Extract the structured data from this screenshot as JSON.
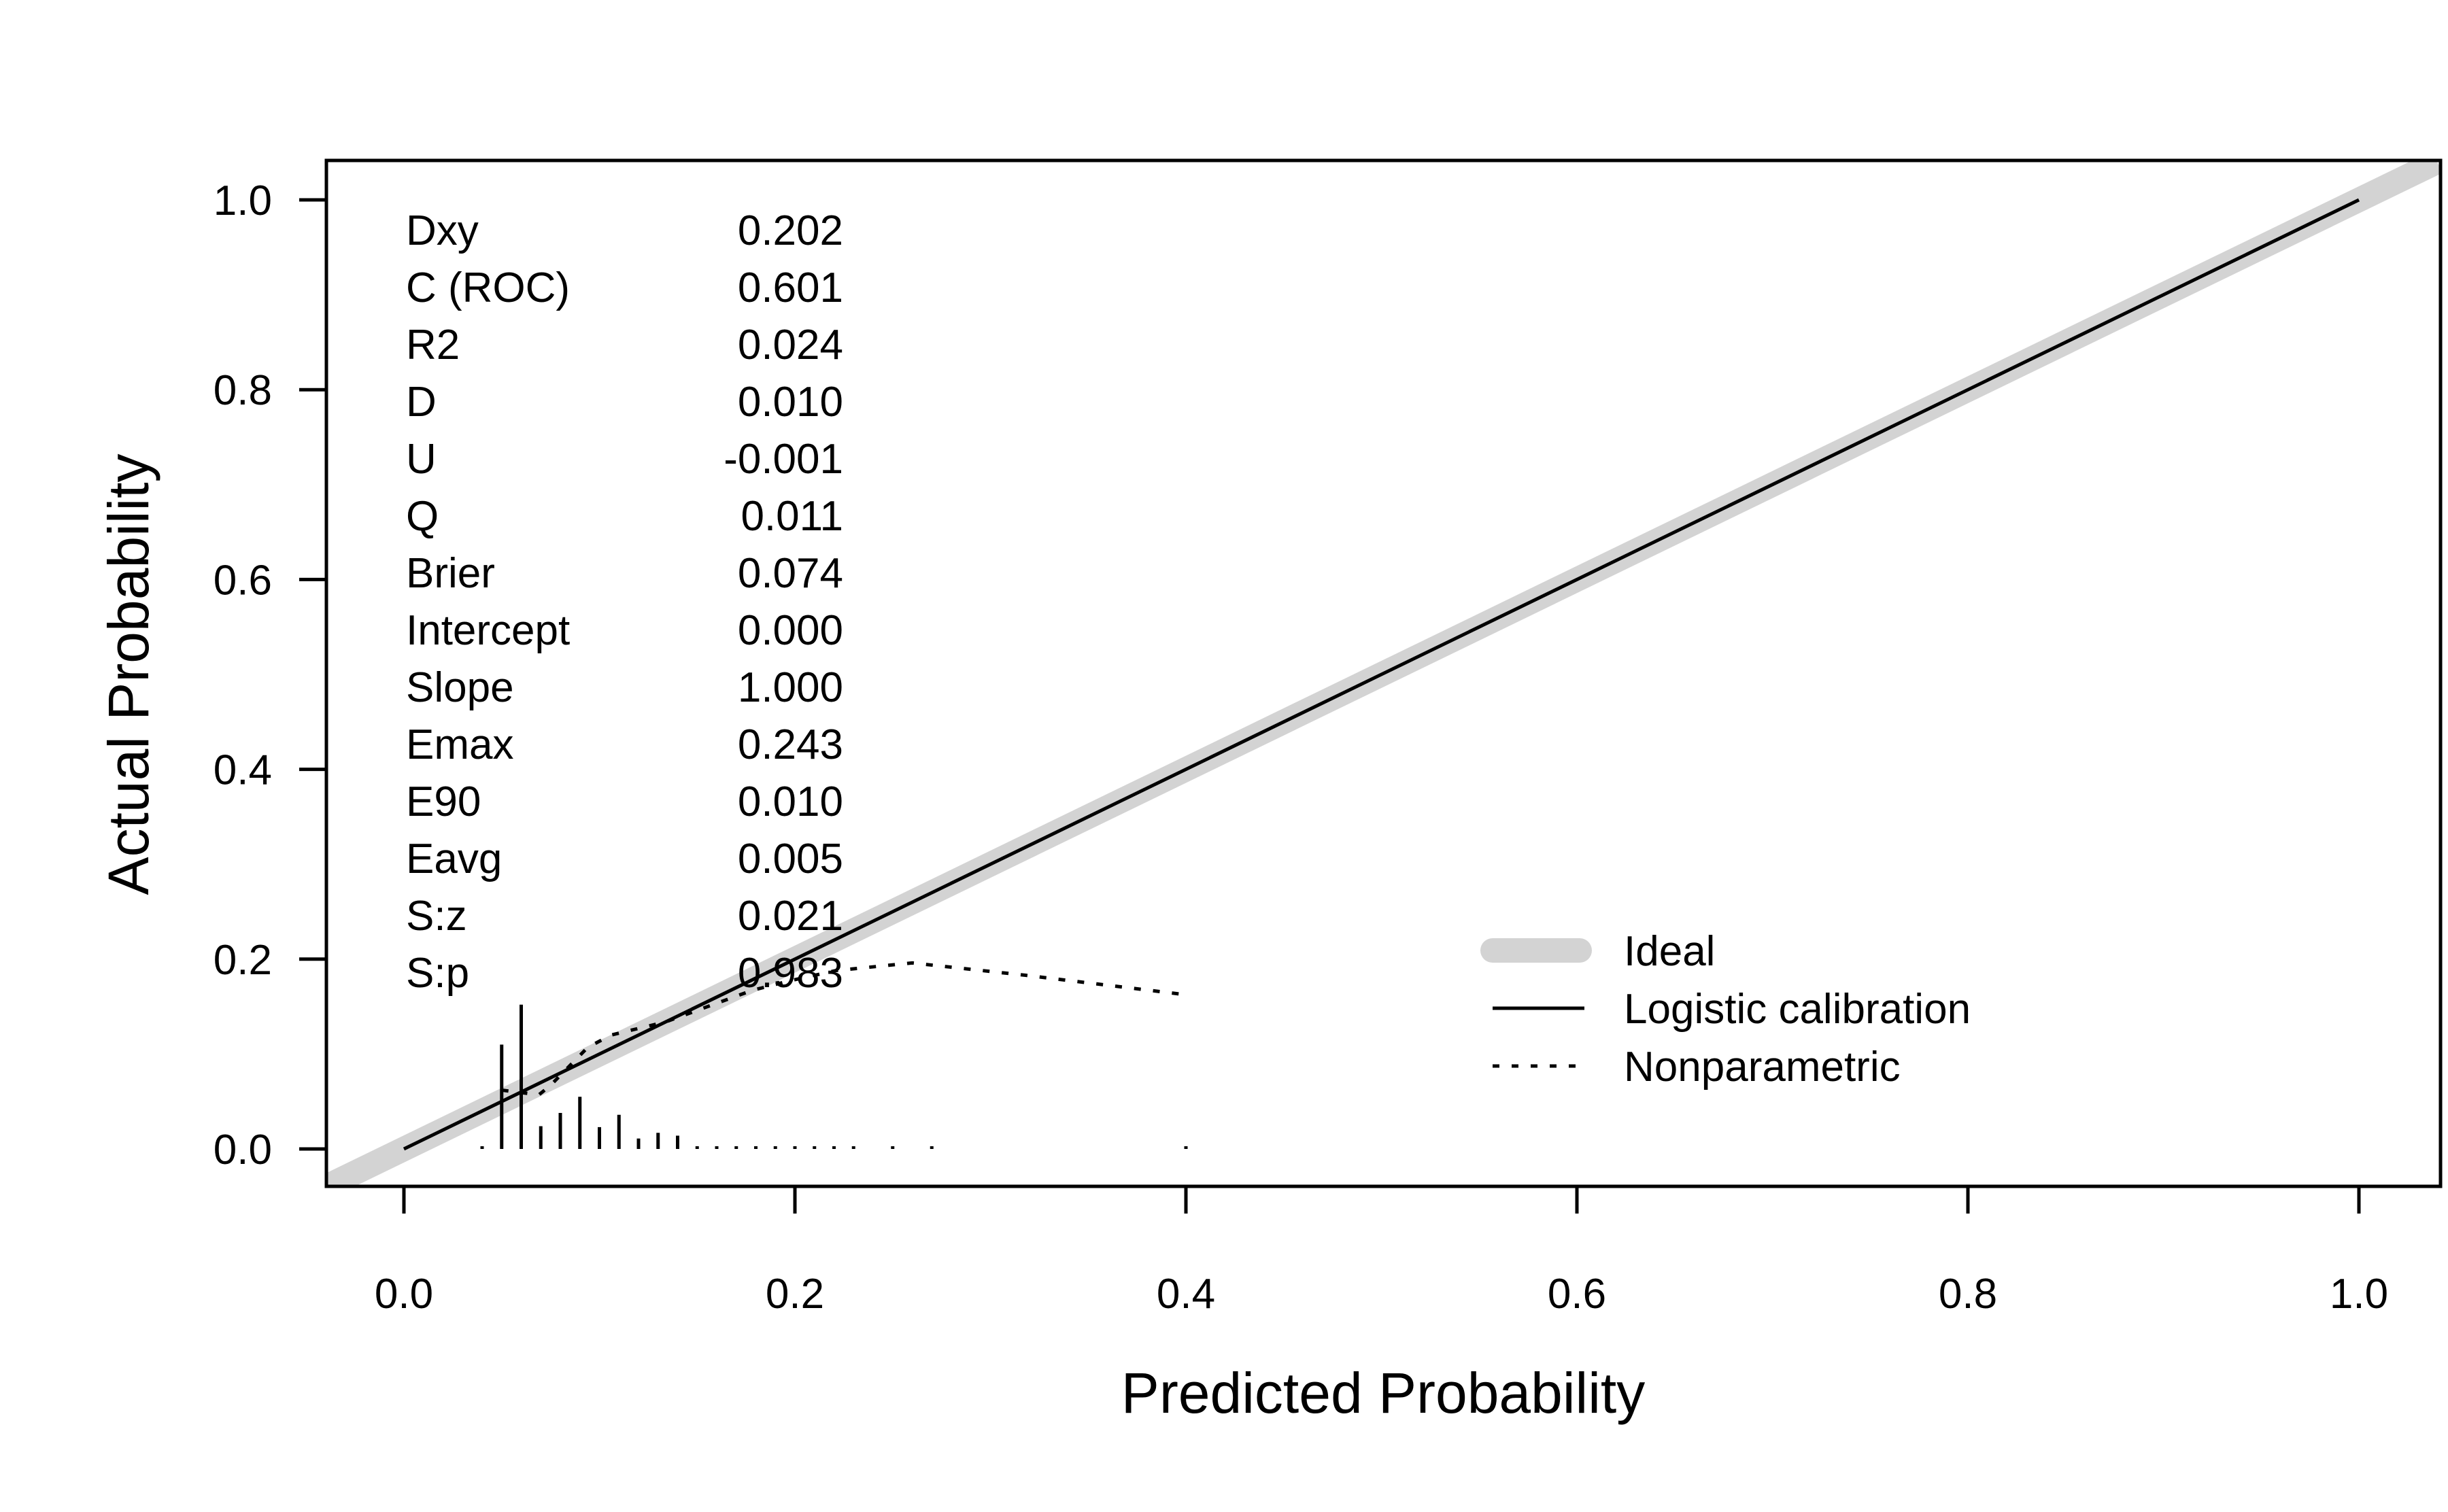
{
  "chart_data": {
    "type": "line",
    "title": "",
    "xlabel": "Predicted Probability",
    "ylabel": "Actual Probability",
    "xlim": [
      -0.04,
      1.04
    ],
    "ylim": [
      -0.04,
      1.04
    ],
    "xticks": [
      "0.0",
      "0.2",
      "0.4",
      "0.6",
      "0.8",
      "1.0"
    ],
    "yticks": [
      "0.0",
      "0.2",
      "0.4",
      "0.6",
      "0.8",
      "1.0"
    ],
    "grid": false,
    "stats": [
      {
        "label": "Dxy",
        "value": "0.202"
      },
      {
        "label": "C (ROC)",
        "value": "0.601"
      },
      {
        "label": "R2",
        "value": "0.024"
      },
      {
        "label": "D",
        "value": "0.010"
      },
      {
        "label": "U",
        "value": "-0.001"
      },
      {
        "label": "Q",
        "value": "0.011"
      },
      {
        "label": "Brier",
        "value": "0.074"
      },
      {
        "label": "Intercept",
        "value": "0.000"
      },
      {
        "label": "Slope",
        "value": "1.000"
      },
      {
        "label": "Emax",
        "value": "0.243"
      },
      {
        "label": "E90",
        "value": "0.010"
      },
      {
        "label": "Eavg",
        "value": "0.005"
      },
      {
        "label": "S:z",
        "value": "0.021"
      },
      {
        "label": "S:p",
        "value": "0.983"
      }
    ],
    "legend": {
      "position": "bottom-right",
      "entries": [
        "Ideal",
        "Logistic calibration",
        "Nonparametric"
      ]
    },
    "series": [
      {
        "name": "Ideal",
        "x": [
          -0.04,
          1.04
        ],
        "y": [
          -0.04,
          1.04
        ],
        "color": "#d3d3d3"
      },
      {
        "name": "Logistic calibration",
        "x": [
          0.0,
          1.0
        ],
        "y": [
          0.0,
          1.0
        ],
        "color": "#000000"
      },
      {
        "name": "Nonparametric",
        "x": [
          0.05,
          0.069,
          0.075,
          0.094,
          0.106,
          0.134,
          0.178,
          0.197,
          0.221,
          0.26,
          0.318,
          0.398
        ],
        "y": [
          0.062,
          0.057,
          0.067,
          0.107,
          0.12,
          0.134,
          0.167,
          0.177,
          0.188,
          0.196,
          0.183,
          0.163
        ],
        "color": "#000000"
      }
    ],
    "rug": {
      "x": [
        0.04,
        0.05,
        0.06,
        0.07,
        0.08,
        0.09,
        0.1,
        0.11,
        0.12,
        0.13,
        0.14,
        0.15,
        0.16,
        0.17,
        0.18,
        0.19,
        0.2,
        0.21,
        0.22,
        0.23,
        0.25,
        0.27,
        0.4
      ],
      "height": [
        0.002,
        0.11,
        0.152,
        0.024,
        0.038,
        0.055,
        0.023,
        0.036,
        0.011,
        0.017,
        0.014,
        0.002,
        0.002,
        0.002,
        0.002,
        0.002,
        0.002,
        0.002,
        0.002,
        0.002,
        0.002,
        0.002,
        0.002
      ]
    }
  }
}
